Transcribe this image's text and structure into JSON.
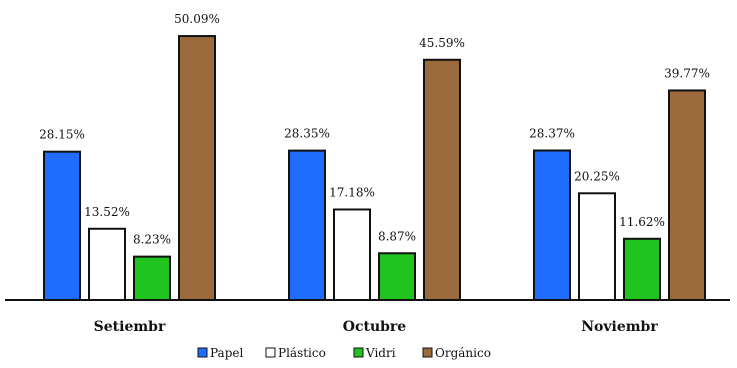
{
  "chart_data": {
    "type": "bar",
    "categories": [
      "Setiembr",
      "Octubre",
      "Noviembr"
    ],
    "series": [
      {
        "name": "Papel",
        "color": "#1f6cff",
        "values": [
          28.15,
          28.35,
          28.37
        ],
        "labels": [
          "28.15%",
          "28.35%",
          "28.37%"
        ]
      },
      {
        "name": "Plástico",
        "color": "#ffffff",
        "values": [
          13.52,
          17.18,
          20.25
        ],
        "labels": [
          "13.52%",
          "17.18%",
          "20.25%"
        ]
      },
      {
        "name": "Vidri",
        "color": "#1fc41f",
        "values": [
          8.23,
          8.87,
          11.62
        ],
        "labels": [
          "8.23%",
          "8.87%",
          "11.62%"
        ]
      },
      {
        "name": "Orgánico",
        "color": "#9b6a3c",
        "values": [
          50.09,
          45.59,
          39.77
        ],
        "labels": [
          "50.09%",
          "45.59%",
          "39.77%"
        ]
      }
    ],
    "title": "",
    "xlabel": "",
    "ylabel": "",
    "ylim": [
      0,
      52
    ],
    "grid": false,
    "legend_position": "bottom"
  }
}
